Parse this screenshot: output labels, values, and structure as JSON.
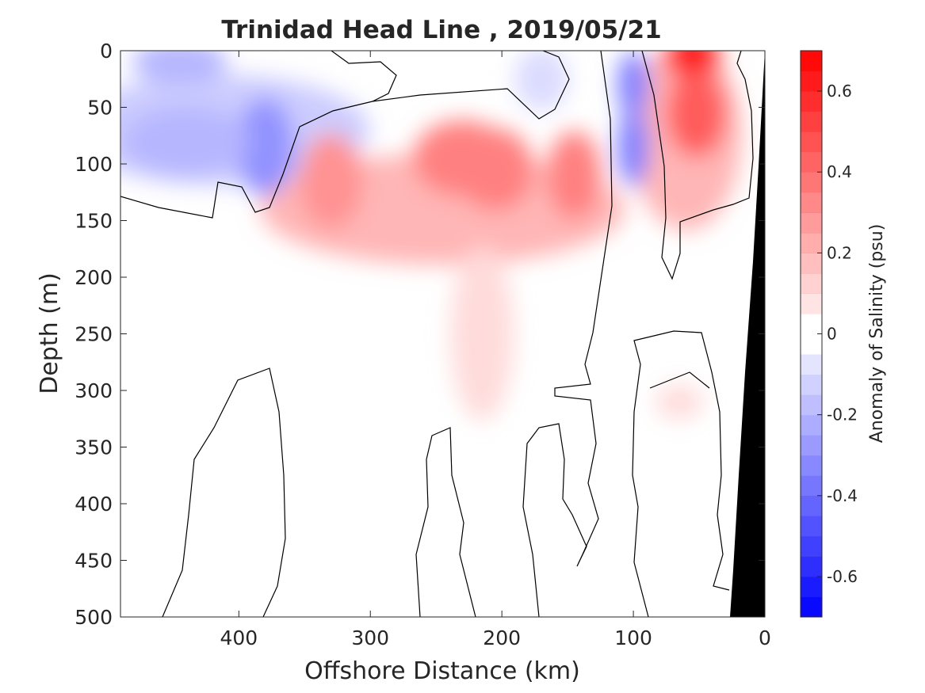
{
  "chart_data": {
    "type": "heatmap",
    "subtype": "filled-contour section",
    "title": "Trinidad Head Line , 2019/05/21",
    "xlabel": "Offshore Distance (km)",
    "ylabel": "Depth (m)",
    "xlim": [
      490,
      0
    ],
    "x_reversed": true,
    "ylim": [
      0,
      500
    ],
    "y_reversed": true,
    "xticks": [
      400,
      300,
      200,
      100,
      0
    ],
    "yticks": [
      0,
      50,
      100,
      150,
      200,
      250,
      300,
      350,
      400,
      450,
      500
    ],
    "colorbar": {
      "label": "Anomaly of Salinity (psu)",
      "range": [
        -0.7,
        0.7
      ],
      "ticks": [
        -0.6,
        -0.4,
        -0.2,
        0,
        0.2,
        0.4,
        0.6
      ],
      "step": 0.05,
      "low_color": "#0000ff",
      "mid_color": "#ffffff",
      "high_color": "#ff0000"
    },
    "bathymetry_color": "#000000",
    "zero_contour_color": "#000000",
    "grid": false,
    "features": [
      {
        "kind": "positive",
        "distance_km": 55,
        "depth_m": 5,
        "anomaly": 0.65
      },
      {
        "kind": "positive",
        "distance_km": 52,
        "depth_m": 55,
        "anomaly": 0.45
      },
      {
        "kind": "positive",
        "distance_km": 230,
        "depth_m": 95,
        "anomaly": 0.35
      },
      {
        "kind": "positive",
        "distance_km": 205,
        "depth_m": 105,
        "anomaly": 0.35
      },
      {
        "kind": "positive",
        "distance_km": 330,
        "depth_m": 115,
        "anomaly": 0.3
      },
      {
        "kind": "positive",
        "distance_km": 145,
        "depth_m": 110,
        "anomaly": 0.35
      },
      {
        "kind": "positive",
        "distance_km": 215,
        "depth_m": 250,
        "anomaly": 0.1
      },
      {
        "kind": "positive",
        "distance_km": 65,
        "depth_m": 310,
        "anomaly": 0.1
      },
      {
        "kind": "negative",
        "distance_km": 100,
        "depth_m": 30,
        "anomaly": -0.35
      },
      {
        "kind": "negative",
        "distance_km": 100,
        "depth_m": 85,
        "anomaly": -0.35
      },
      {
        "kind": "negative",
        "distance_km": 380,
        "depth_m": 85,
        "anomaly": -0.3
      },
      {
        "kind": "negative",
        "distance_km": 445,
        "depth_m": 10,
        "anomaly": -0.2
      },
      {
        "kind": "negative",
        "distance_km": 440,
        "depth_m": 80,
        "anomaly": -0.2
      },
      {
        "kind": "negative",
        "distance_km": 170,
        "depth_m": 25,
        "anomaly": -0.1
      }
    ]
  }
}
